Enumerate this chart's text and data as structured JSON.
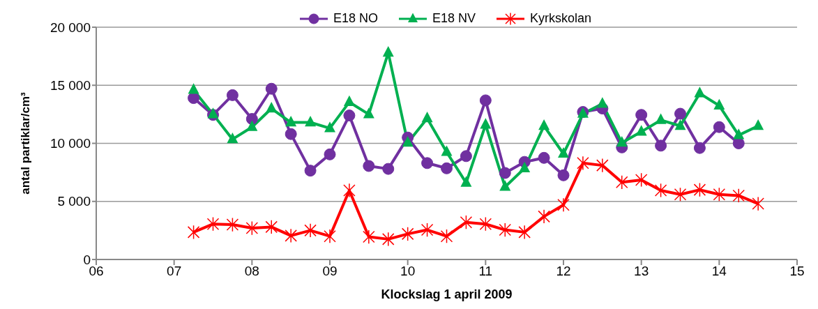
{
  "chart_data": {
    "type": "line",
    "xlabel": "Klockslag 1 april 2009",
    "ylabel": "antal partiklar/cm³",
    "x": [
      7.25,
      7.5,
      7.75,
      8,
      8.25,
      8.5,
      8.75,
      9,
      9.25,
      9.5,
      9.75,
      10,
      10.25,
      10.5,
      10.75,
      11,
      11.25,
      11.5,
      11.75,
      12,
      12.25,
      12.5,
      12.75,
      13,
      13.25,
      13.5,
      13.75,
      14,
      14.25,
      14.5
    ],
    "series": [
      {
        "name": "E18 NO",
        "color": "#7030a0",
        "marker": "circle",
        "values": [
          13900,
          12450,
          14150,
          12100,
          14700,
          10800,
          7650,
          9050,
          12400,
          8050,
          7800,
          10500,
          8300,
          7850,
          8900,
          13700,
          7450,
          8400,
          8750,
          7250,
          12700,
          13000,
          9650,
          12450,
          9800,
          12550,
          9600,
          11400,
          10000,
          null
        ]
      },
      {
        "name": "E18 NV",
        "color": "#00b050",
        "marker": "triangle",
        "values": [
          14600,
          12500,
          10350,
          11400,
          13000,
          11800,
          11800,
          11300,
          13550,
          12500,
          17800,
          10050,
          12150,
          9250,
          6600,
          11600,
          6250,
          7850,
          11500,
          9100,
          12550,
          13400,
          10050,
          11000,
          12000,
          11500,
          14300,
          13250,
          10700,
          11500
        ]
      },
      {
        "name": "Kyrkskolan",
        "color": "#ff0000",
        "marker": "cross",
        "values": [
          2350,
          3050,
          3000,
          2700,
          2800,
          2050,
          2500,
          2000,
          5950,
          1950,
          1750,
          2200,
          2550,
          2000,
          3200,
          3050,
          2550,
          2350,
          3700,
          4700,
          8300,
          8100,
          6650,
          6850,
          5950,
          5600,
          6000,
          5600,
          5500,
          4800
        ]
      }
    ],
    "xlim": [
      6,
      15
    ],
    "xticks": [
      {
        "value": 6,
        "label": "06"
      },
      {
        "value": 7,
        "label": "07"
      },
      {
        "value": 8,
        "label": "08"
      },
      {
        "value": 9,
        "label": "09"
      },
      {
        "value": 10,
        "label": "10"
      },
      {
        "value": 11,
        "label": "11"
      },
      {
        "value": 12,
        "label": "12"
      },
      {
        "value": 13,
        "label": "13"
      },
      {
        "value": 14,
        "label": "14"
      },
      {
        "value": 15,
        "label": "15"
      }
    ],
    "ylim": [
      0,
      20000
    ],
    "yticks": [
      {
        "value": 0,
        "label": "0"
      },
      {
        "value": 5000,
        "label": "5 000"
      },
      {
        "value": 10000,
        "label": "10 000"
      },
      {
        "value": 15000,
        "label": "15 000"
      },
      {
        "value": 20000,
        "label": "20 000"
      }
    ],
    "grid": "y",
    "legend": "top"
  }
}
